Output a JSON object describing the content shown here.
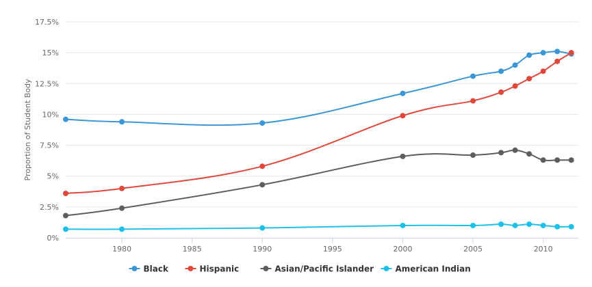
{
  "chart_data": {
    "type": "line",
    "ylabel": "Proportion of Student Body",
    "xlabel": "",
    "xlim": [
      1976,
      2012.5
    ],
    "ylim": [
      0,
      17.5
    ],
    "x_ticks": [
      1980,
      1985,
      1990,
      1995,
      2000,
      2005,
      2010
    ],
    "x_tick_labels": [
      "1980",
      "1985",
      "1990",
      "1995",
      "2000",
      "2005",
      "2010"
    ],
    "y_ticks": [
      0,
      2.5,
      5,
      7.5,
      10,
      12.5,
      15,
      17.5
    ],
    "y_tick_labels": [
      "0%",
      "2.5%",
      "5%",
      "7.5%",
      "10%",
      "12.5%",
      "15%",
      "17.5%"
    ],
    "grid": true,
    "legend_position": "bottom",
    "x": [
      1976,
      1980,
      1990,
      2000,
      2005,
      2007,
      2008,
      2009,
      2010,
      2011,
      2012
    ],
    "series": [
      {
        "name": "Black",
        "color": "#3a96d6",
        "values": [
          9.6,
          9.4,
          9.3,
          11.7,
          13.1,
          13.5,
          14.0,
          14.8,
          15.0,
          15.1,
          14.9
        ]
      },
      {
        "name": "Hispanic",
        "color": "#e0483c",
        "values": [
          3.6,
          4.0,
          5.8,
          9.9,
          11.1,
          11.8,
          12.3,
          12.9,
          13.5,
          14.3,
          15.0
        ]
      },
      {
        "name": "Asian/Pacific Islander",
        "color": "#5d5d5d",
        "values": [
          1.8,
          2.4,
          4.3,
          6.6,
          6.7,
          6.9,
          7.1,
          6.8,
          6.3,
          6.3,
          6.3
        ]
      },
      {
        "name": "American Indian",
        "color": "#1cc0e8",
        "values": [
          0.7,
          0.7,
          0.8,
          1.0,
          1.0,
          1.1,
          1.0,
          1.1,
          1.0,
          0.9,
          0.9
        ]
      }
    ]
  }
}
